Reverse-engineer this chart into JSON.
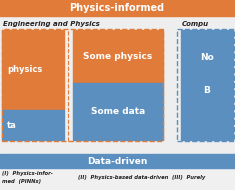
{
  "title_top": "Physics-informed",
  "title_bottom": "Data-driven",
  "label_left": "Engineering and Physics",
  "label_right": "Compu",
  "orange_color": "#E07B39",
  "blue_color": "#5B8FBF",
  "bg_color": "#F0F0F0",
  "text_color_white": "#FFFFFF",
  "text_color_dark": "#222222",
  "col1_label_top": "physics",
  "col1_label_bottom": "ta",
  "col2_label_top": "Some physics",
  "col2_label_bottom": "Some data",
  "col3_label_top": "No",
  "col3_label_bottom": "B",
  "footer_line1": "(I)  Physics-infor-",
  "footer_line2": "med",
  "footer_line3": "(PINNs)",
  "footer_col2": "(II)  Physics-based data-driven",
  "footer_col3": "(III)  Purely"
}
